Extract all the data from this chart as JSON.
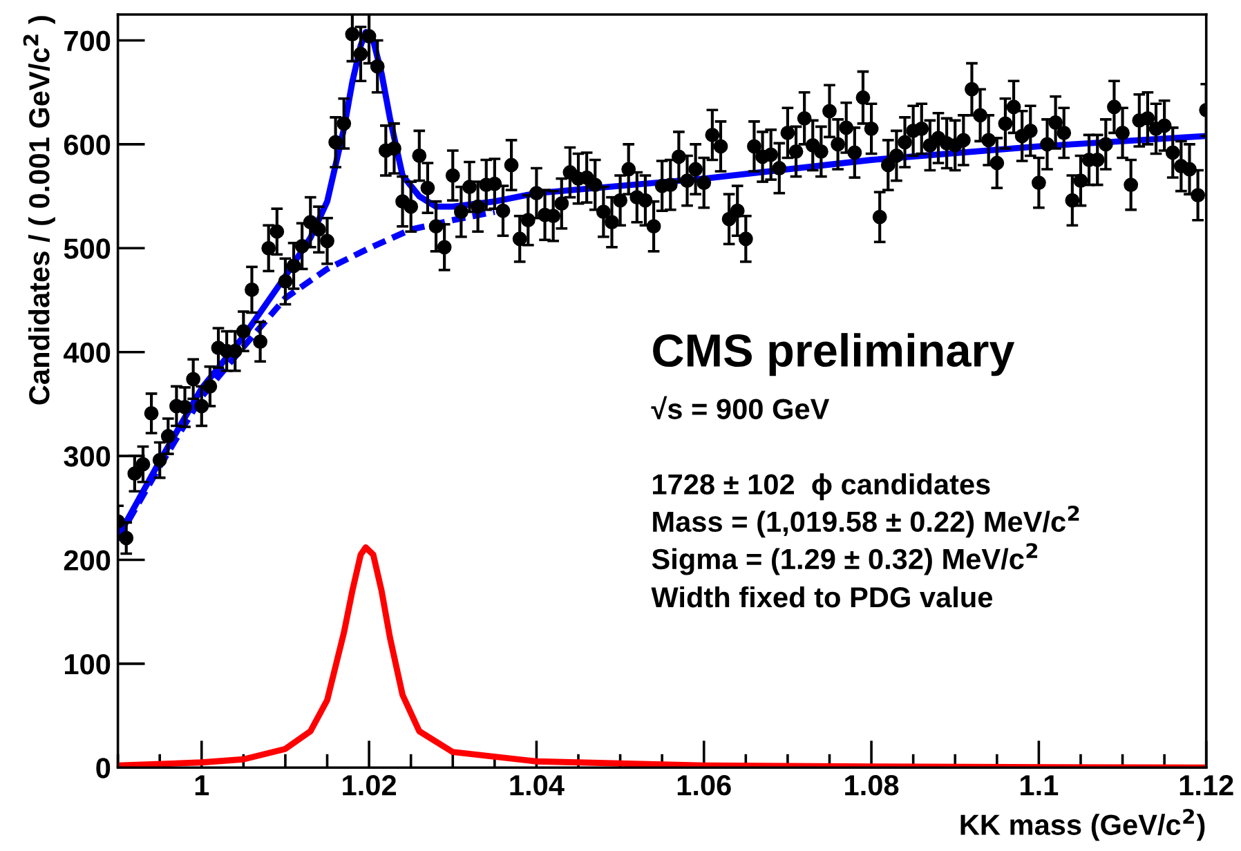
{
  "chart_data": {
    "type": "scatter",
    "xlabel": "KK mass (GeV/c$^{2}$)",
    "ylabel": "Candidates / ( 0.001 GeV/c$^{2}$ )",
    "xlim": [
      0.99,
      1.12
    ],
    "xticks": [
      1,
      1.02,
      1.04,
      1.06,
      1.08,
      1.1,
      1.12
    ],
    "ylim": [
      0,
      725
    ],
    "yticks": [
      0,
      100,
      200,
      300,
      400,
      500,
      600,
      700
    ],
    "grid": false,
    "legend": false,
    "annotations": [
      "CMS preliminary",
      "√s = 900 GeV",
      "1728 ± 102  ϕ candidates",
      "Mass = (1,019.58 ± 0.22) MeV/c$^{2}$",
      "Sigma = (1.29 ± 0.32) MeV/c$^{2}$",
      "Width fixed to PDG value"
    ],
    "series": [
      {
        "color": "#000000",
        "marker": "circle",
        "x": [
          0.99,
          0.991,
          0.992,
          0.993,
          0.994,
          0.995,
          0.996,
          0.997,
          0.998,
          0.999,
          1.0,
          1.001,
          1.002,
          1.003,
          1.004,
          1.005,
          1.006,
          1.007,
          1.008,
          1.009,
          1.01,
          1.011,
          1.012,
          1.013,
          1.014,
          1.015,
          1.016,
          1.017,
          1.018,
          1.019,
          1.02,
          1.021,
          1.022,
          1.023,
          1.024,
          1.025,
          1.026,
          1.027,
          1.028,
          1.029,
          1.03,
          1.031,
          1.032,
          1.033,
          1.034,
          1.035,
          1.036,
          1.037,
          1.038,
          1.039,
          1.04,
          1.041,
          1.042,
          1.043,
          1.044,
          1.045,
          1.046,
          1.047,
          1.048,
          1.049,
          1.05,
          1.051,
          1.052,
          1.053,
          1.054,
          1.055,
          1.056,
          1.057,
          1.058,
          1.059,
          1.06,
          1.061,
          1.062,
          1.063,
          1.064,
          1.065,
          1.066,
          1.067,
          1.068,
          1.069,
          1.07,
          1.071,
          1.072,
          1.073,
          1.074,
          1.075,
          1.076,
          1.077,
          1.078,
          1.079,
          1.08,
          1.081,
          1.082,
          1.083,
          1.084,
          1.085,
          1.086,
          1.087,
          1.088,
          1.089,
          1.09,
          1.091,
          1.092,
          1.093,
          1.094,
          1.095,
          1.096,
          1.097,
          1.098,
          1.099,
          1.1,
          1.101,
          1.102,
          1.103,
          1.104,
          1.105,
          1.106,
          1.107,
          1.108,
          1.109,
          1.11,
          1.111,
          1.112,
          1.113,
          1.114,
          1.115,
          1.116,
          1.117,
          1.118,
          1.119,
          1.12
        ],
        "values": [
          237,
          221,
          283,
          292,
          341,
          296,
          319,
          348,
          347,
          374,
          348,
          367,
          404,
          401,
          401,
          420,
          460,
          410,
          500,
          516,
          468,
          483,
          502,
          525,
          518,
          507,
          602,
          620,
          706,
          687,
          704,
          675,
          594,
          596,
          545,
          540,
          589,
          558,
          521,
          501,
          570,
          535,
          559,
          540,
          561,
          562,
          536,
          580,
          509,
          527,
          553,
          532,
          531,
          543,
          573,
          567,
          568,
          561,
          535,
          525,
          546,
          576,
          549,
          546,
          521,
          560,
          561,
          588,
          565,
          576,
          563,
          609,
          598,
          528,
          536,
          509,
          598,
          588,
          590,
          577,
          611,
          593,
          625,
          599,
          593,
          632,
          600,
          616,
          592,
          645,
          615,
          530,
          580,
          589,
          602,
          613,
          615,
          599,
          606,
          601,
          599,
          604,
          653,
          628,
          604,
          582,
          620,
          636,
          608,
          613,
          563,
          600,
          621,
          611,
          546,
          565,
          585,
          585,
          600,
          636,
          611,
          561,
          623,
          625,
          615,
          618,
          592,
          579,
          576,
          551,
          633
        ],
        "errors": [
          15,
          15,
          17,
          17,
          19,
          17,
          17,
          19,
          19,
          19,
          19,
          19,
          19,
          19,
          19,
          19,
          22,
          19,
          22,
          22,
          22,
          22,
          22,
          24,
          22,
          22,
          24,
          24,
          26,
          26,
          26,
          25,
          24,
          24,
          24,
          24,
          24,
          24,
          24,
          22,
          24,
          24,
          24,
          24,
          24,
          24,
          24,
          24,
          22,
          24,
          24,
          24,
          24,
          24,
          24,
          24,
          24,
          24,
          24,
          24,
          24,
          24,
          24,
          24,
          24,
          24,
          24,
          24,
          24,
          24,
          24,
          24,
          24,
          24,
          24,
          22,
          24,
          24,
          24,
          24,
          24,
          24,
          25,
          24,
          24,
          25,
          24,
          24,
          24,
          25,
          24,
          24,
          24,
          24,
          24,
          24,
          24,
          24,
          24,
          24,
          24,
          24,
          25,
          25,
          24,
          24,
          24,
          25,
          24,
          24,
          24,
          24,
          25,
          24,
          24,
          24,
          24,
          24,
          24,
          25,
          24,
          24,
          25,
          25,
          24,
          24,
          24,
          24,
          24,
          24,
          25
        ]
      },
      {
        "type": "line",
        "color": "#0000ff",
        "line_style": "solid",
        "x": [
          0.99,
          0.995,
          1.0,
          1.005,
          1.01,
          1.013,
          1.015,
          1.017,
          1.018,
          1.019,
          1.0196,
          1.0205,
          1.0215,
          1.0225,
          1.024,
          1.026,
          1.028,
          1.03,
          1.035,
          1.04,
          1.06,
          1.08,
          1.1,
          1.12
        ],
        "values": [
          222,
          295,
          365,
          415,
          473,
          510,
          545,
          615,
          660,
          695,
          708,
          700,
          668,
          625,
          570,
          550,
          540,
          540,
          545,
          553,
          567,
          585,
          598,
          608
        ]
      },
      {
        "type": "line",
        "color": "#0000ff",
        "line_style": "dashed",
        "x": [
          0.99,
          0.995,
          1.0,
          1.005,
          1.01,
          1.015,
          1.02,
          1.025,
          1.03,
          1.035
        ],
        "values": [
          220,
          290,
          357,
          405,
          452,
          480,
          500,
          518,
          527,
          535
        ]
      },
      {
        "type": "line",
        "color": "#ff0000",
        "line_style": "solid",
        "x": [
          0.99,
          1.0,
          1.005,
          1.01,
          1.013,
          1.015,
          1.017,
          1.018,
          1.019,
          1.0196,
          1.0205,
          1.0215,
          1.0225,
          1.024,
          1.026,
          1.03,
          1.04,
          1.06,
          1.08,
          1.12
        ],
        "values": [
          2,
          5,
          8,
          18,
          35,
          65,
          130,
          170,
          205,
          212,
          205,
          170,
          125,
          70,
          35,
          15,
          6,
          2,
          1,
          0
        ]
      }
    ]
  }
}
